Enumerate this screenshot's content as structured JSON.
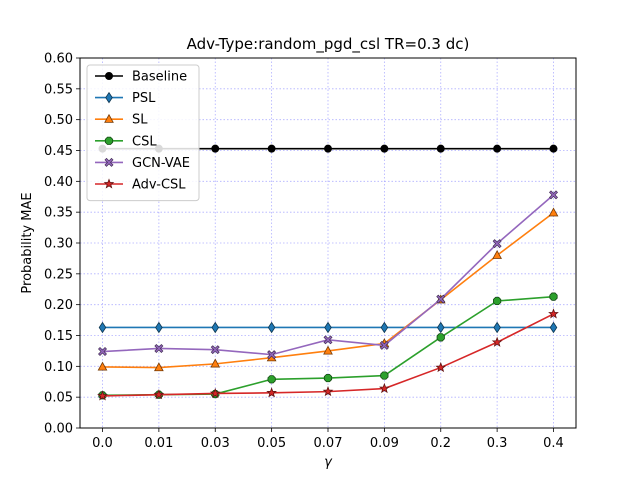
{
  "chart_data": {
    "type": "line",
    "title": "Adv-Type:random_pgd_csl TR=0.3 dc)",
    "xlabel": "γ",
    "ylabel": "Probability MAE",
    "categories": [
      "0.0",
      "0.01",
      "0.03",
      "0.05",
      "0.07",
      "0.09",
      "0.2",
      "0.3",
      "0.4"
    ],
    "ylim": [
      0.0,
      0.6
    ],
    "yticks": [
      "0.00",
      "0.05",
      "0.10",
      "0.15",
      "0.20",
      "0.25",
      "0.30",
      "0.35",
      "0.40",
      "0.45",
      "0.50",
      "0.55",
      "0.60"
    ],
    "grid": true,
    "legend_position": "top-left",
    "series": [
      {
        "name": "Baseline",
        "color": "#000000",
        "marker": "circle",
        "values": [
          0.453,
          0.453,
          0.453,
          0.453,
          0.453,
          0.453,
          0.453,
          0.453,
          0.453
        ]
      },
      {
        "name": "PSL",
        "color": "#1f77b4",
        "marker": "thin-diamond",
        "values": [
          0.163,
          0.163,
          0.163,
          0.163,
          0.163,
          0.163,
          0.163,
          0.163,
          0.163
        ]
      },
      {
        "name": "SL",
        "color": "#ff7f0e",
        "marker": "triangle",
        "values": [
          0.099,
          0.098,
          0.104,
          0.114,
          0.125,
          0.137,
          0.208,
          0.28,
          0.349
        ]
      },
      {
        "name": "CSL",
        "color": "#2ca02c",
        "marker": "octagon",
        "values": [
          0.053,
          0.054,
          0.055,
          0.079,
          0.081,
          0.085,
          0.147,
          0.206,
          0.213
        ]
      },
      {
        "name": "GCN-VAE",
        "color": "#9467bd",
        "marker": "x-filled",
        "values": [
          0.124,
          0.129,
          0.127,
          0.119,
          0.143,
          0.134,
          0.209,
          0.299,
          0.378
        ]
      },
      {
        "name": "Adv-CSL",
        "color": "#d62728",
        "marker": "star",
        "values": [
          0.052,
          0.054,
          0.056,
          0.057,
          0.059,
          0.064,
          0.098,
          0.139,
          0.185
        ]
      }
    ]
  }
}
